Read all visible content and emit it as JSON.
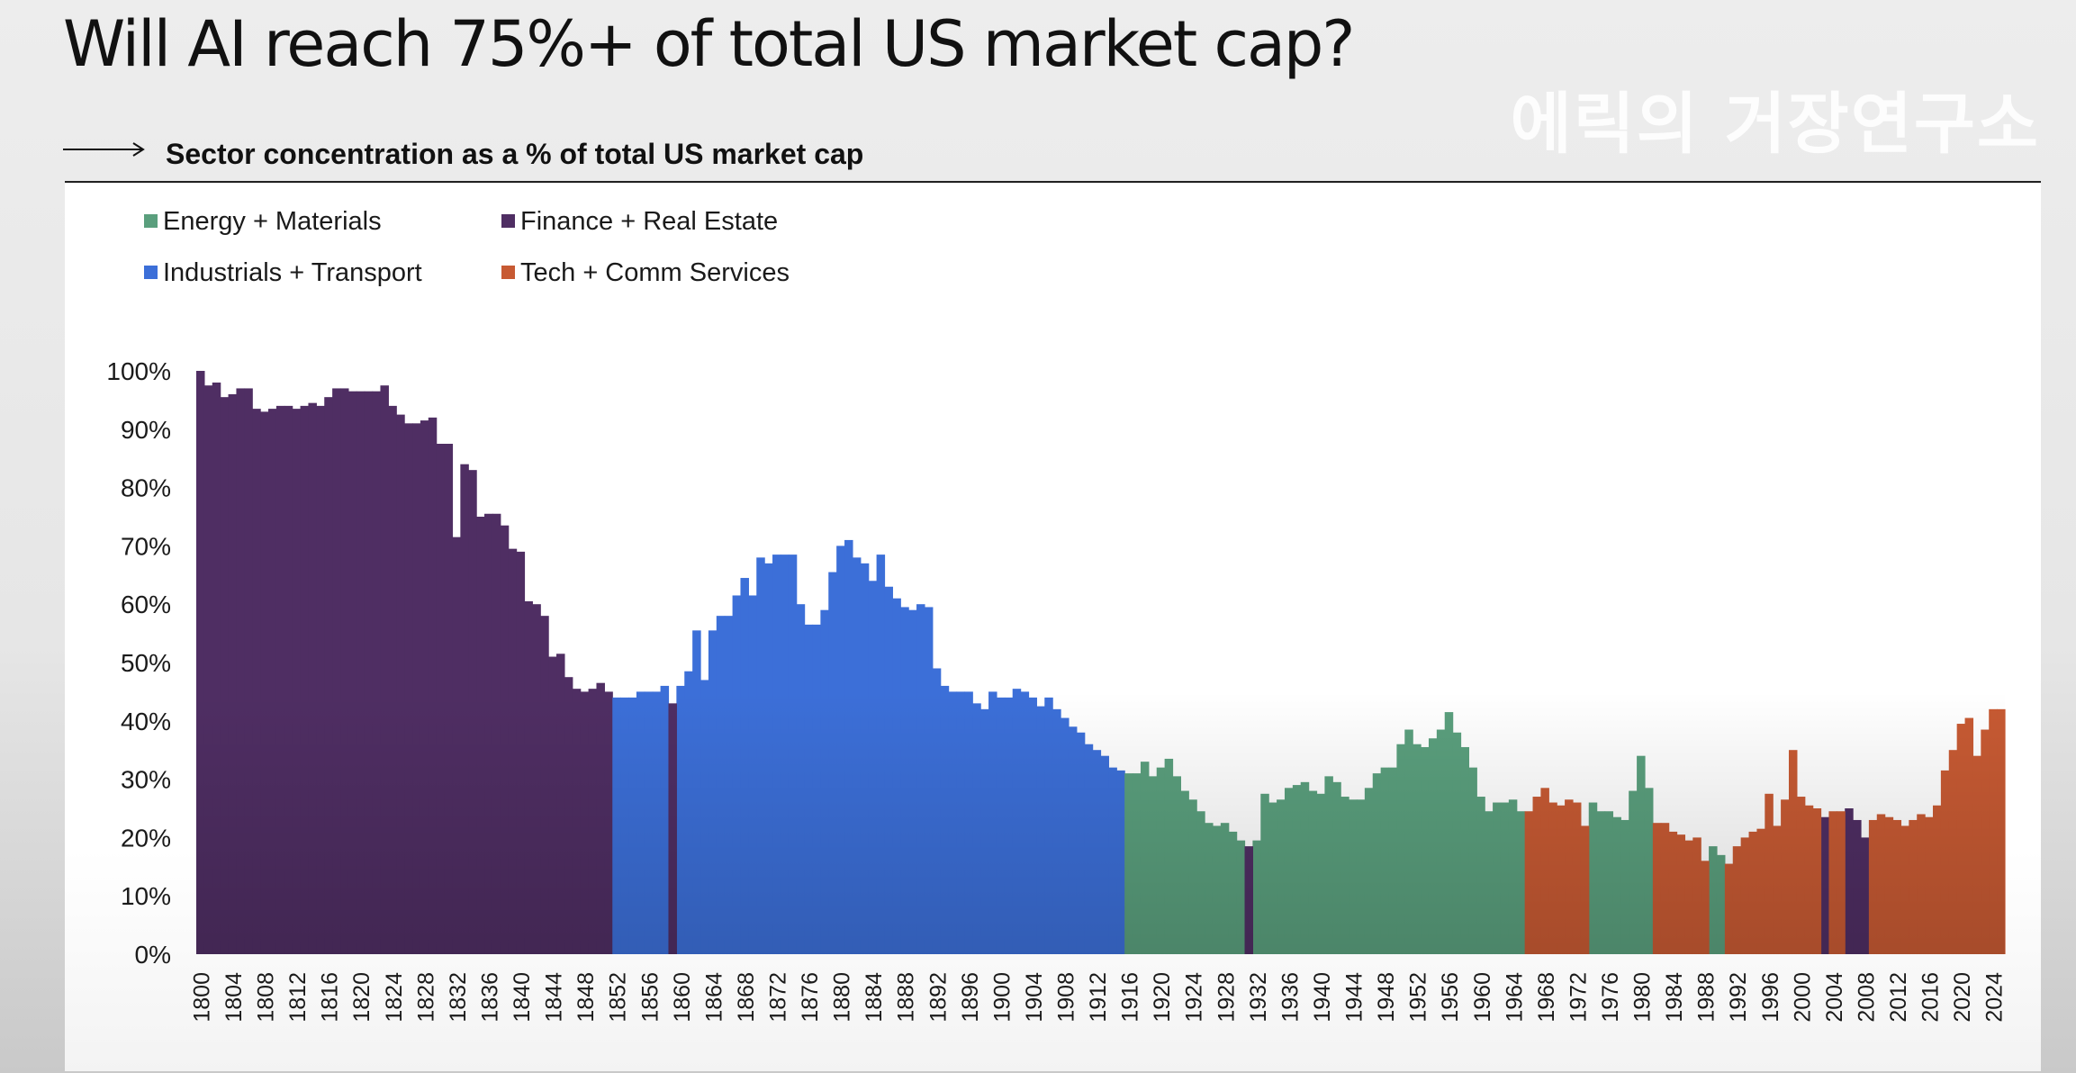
{
  "title": "Will AI reach 75%+ of total US market cap?",
  "subtitle": "Sector concentration as a % of total US market cap",
  "watermark": "에릭의 거장연구소",
  "colors": {
    "Energy + Materials": "#5a9f7d",
    "Finance + Real Estate": "#4f2e63",
    "Industrials + Transport": "#3c6fd8",
    "Tech + Comm Services": "#c75a33"
  },
  "legend": [
    {
      "label": "Energy + Materials",
      "color": "#5a9f7d"
    },
    {
      "label": "Finance + Real Estate",
      "color": "#4f2e63"
    },
    {
      "label": "Industrials + Transport",
      "color": "#3c6fd8"
    },
    {
      "label": "Tech + Comm Services",
      "color": "#c75a33"
    }
  ],
  "chart_data": {
    "type": "bar",
    "ylim": [
      0,
      100
    ],
    "yticks": [
      "0%",
      "10%",
      "20%",
      "30%",
      "40%",
      "50%",
      "60%",
      "70%",
      "80%",
      "90%",
      "100%"
    ],
    "xticks": [
      "1800",
      "1804",
      "1808",
      "1812",
      "1816",
      "1820",
      "1824",
      "1828",
      "1832",
      "1836",
      "1840",
      "1844",
      "1848",
      "1852",
      "1856",
      "1860",
      "1864",
      "1868",
      "1872",
      "1876",
      "1880",
      "1884",
      "1888",
      "1892",
      "1896",
      "1900",
      "1904",
      "1908",
      "1912",
      "1916",
      "1920",
      "1924",
      "1928",
      "1932",
      "1936",
      "1940",
      "1944",
      "1948",
      "1952",
      "1956",
      "1960",
      "1964",
      "1968",
      "1972",
      "1976",
      "1980",
      "1984",
      "1988",
      "1992",
      "1996",
      "2000",
      "2004",
      "2008",
      "2012",
      "2016",
      "2020",
      "2024"
    ],
    "x_start": 1800,
    "x_end": 2025,
    "series": [
      {
        "name": "Finance + Real Estate",
        "x": [
          1800,
          1801,
          1802,
          1803,
          1804,
          1805,
          1806,
          1807,
          1808,
          1809,
          1810,
          1811,
          1812,
          1813,
          1814,
          1815,
          1816,
          1817,
          1818,
          1819,
          1820,
          1821,
          1822,
          1823,
          1824,
          1825,
          1826,
          1827,
          1828,
          1829,
          1830,
          1831,
          1832,
          1833,
          1834,
          1835,
          1836,
          1837,
          1838,
          1839,
          1840,
          1841,
          1842,
          1843,
          1844,
          1845,
          1846,
          1847,
          1848,
          1849,
          1850,
          1851
        ],
        "values": [
          100,
          97.5,
          98,
          95.5,
          96,
          97,
          97,
          93.5,
          93,
          93.5,
          94,
          94,
          93.5,
          94,
          94.5,
          94,
          95.5,
          97,
          97,
          96.5,
          96.5,
          96.5,
          96.5,
          97.5,
          94,
          92.5,
          91,
          91,
          91.5,
          92,
          87.5,
          87.5,
          71.5,
          84,
          83,
          75,
          75.5,
          75.5,
          73.5,
          69.5,
          69,
          60.5,
          60,
          58,
          51,
          51.5,
          47.5,
          45.5,
          45,
          45.5,
          46.5,
          45
        ]
      },
      {
        "name": "Industrials + Transport",
        "x": [
          1852,
          1853,
          1854,
          1855,
          1856,
          1857,
          1858,
          1860,
          1861,
          1862,
          1863,
          1864,
          1865,
          1866,
          1867,
          1868,
          1869,
          1870,
          1871,
          1872,
          1873,
          1874,
          1875,
          1876,
          1877,
          1878,
          1879,
          1880,
          1881,
          1882,
          1883,
          1884,
          1885,
          1886,
          1887,
          1888,
          1889,
          1890,
          1891,
          1892,
          1893,
          1894,
          1895,
          1896,
          1897,
          1898,
          1899,
          1900,
          1901,
          1902,
          1903,
          1904,
          1905,
          1906,
          1907,
          1908,
          1909,
          1910,
          1911,
          1912,
          1913,
          1914,
          1915
        ],
        "values": [
          44,
          44,
          44,
          45,
          45,
          45,
          46,
          46,
          48.5,
          55.5,
          47,
          55.5,
          58,
          58,
          61.5,
          64.5,
          61.5,
          68,
          67,
          68.5,
          68.5,
          68.5,
          60,
          56.5,
          56.5,
          59,
          65.5,
          70,
          71,
          68,
          67,
          64,
          68.5,
          63,
          61,
          59.5,
          59,
          60,
          59.5,
          49,
          46,
          45,
          45,
          45,
          43,
          42,
          45,
          44,
          44,
          45.5,
          45,
          44,
          42.5,
          44,
          42,
          40.5,
          39,
          38,
          36,
          35,
          34,
          32,
          31.5
        ]
      },
      {
        "name": "Finance + Real Estate",
        "x": [
          1859
        ],
        "values": [
          43
        ]
      },
      {
        "name": "Energy + Materials",
        "x": [
          1916,
          1917,
          1918,
          1919,
          1920,
          1921,
          1922,
          1923,
          1924,
          1925,
          1926,
          1927,
          1928,
          1929,
          1930,
          1932,
          1933,
          1934,
          1935,
          1936,
          1937,
          1938,
          1939,
          1940,
          1941,
          1942,
          1943,
          1944,
          1945,
          1946,
          1947,
          1948,
          1949,
          1950,
          1951,
          1952,
          1953,
          1954,
          1955,
          1956,
          1957,
          1958,
          1959,
          1960,
          1961,
          1962,
          1963,
          1964,
          1965,
          1974,
          1975,
          1976,
          1977,
          1978,
          1979,
          1980,
          1981,
          1989,
          1990
        ],
        "values": [
          31,
          31,
          33,
          30.5,
          32,
          33.5,
          30.5,
          28,
          26.5,
          24.5,
          22.5,
          22,
          22.5,
          21,
          19.5,
          19.5,
          27.5,
          26,
          26.5,
          28.5,
          29,
          29.5,
          28,
          27.5,
          30.5,
          29.5,
          27,
          26.5,
          26.5,
          28.5,
          31,
          32,
          32,
          36,
          38.5,
          36,
          35.5,
          37,
          38.5,
          41.5,
          38,
          35.5,
          32,
          27,
          24.5,
          26,
          26,
          26.5,
          24.5,
          26,
          24.5,
          24.5,
          23.5,
          23,
          28,
          34,
          28.5,
          18.5,
          17
        ]
      },
      {
        "name": "Finance + Real Estate",
        "x": [
          1931,
          2003,
          2006,
          2007,
          2008
        ],
        "values": [
          18.5,
          23.5,
          25,
          23,
          20
        ]
      },
      {
        "name": "Tech + Comm Services",
        "x": [
          1966,
          1967,
          1968,
          1969,
          1970,
          1971,
          1972,
          1973,
          1982,
          1983,
          1984,
          1985,
          1986,
          1987,
          1988,
          1991,
          1992,
          1993,
          1994,
          1995,
          1996,
          1997,
          1998,
          1999,
          2000,
          2001,
          2002,
          2004,
          2005,
          2009,
          2010,
          2011,
          2012,
          2013,
          2014,
          2015,
          2016,
          2017,
          2018,
          2019,
          2020,
          2021,
          2022,
          2023,
          2024,
          2025
        ],
        "values": [
          24.5,
          27,
          28.5,
          26,
          25.5,
          26.5,
          26,
          22,
          22.5,
          22.5,
          21,
          20.5,
          19.5,
          20,
          16,
          15.5,
          18.5,
          20,
          21,
          21.5,
          27.5,
          22,
          26.5,
          35,
          27,
          25.5,
          25,
          24.5,
          24.5,
          23,
          24,
          23.5,
          23,
          22,
          23,
          24,
          23.5,
          25.5,
          31.5,
          35,
          39.5,
          40.5,
          34,
          38.5,
          42,
          42
        ]
      }
    ]
  }
}
